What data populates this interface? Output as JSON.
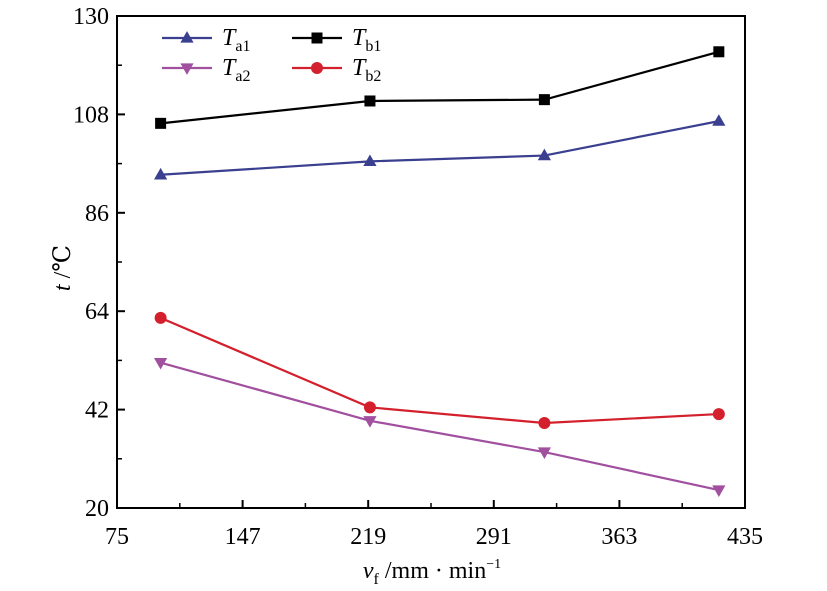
{
  "chart_data": {
    "type": "line",
    "x_axis": {
      "label_main": "v",
      "label_sub": "f",
      "label_rest": " /mm · min",
      "label_sup": "−1",
      "ticks": [
        "75",
        "147",
        "219",
        "291",
        "363",
        "435"
      ],
      "range": [
        75,
        435
      ]
    },
    "y_axis": {
      "label_main": "t",
      "label_rest": " /℃",
      "ticks": [
        "20",
        "42",
        "64",
        "86",
        "108",
        "130"
      ],
      "range": [
        20,
        130
      ]
    },
    "x": [
      100,
      220,
      320,
      420
    ],
    "series": [
      {
        "id": "Ta1",
        "name_main": "T",
        "name_sub": "a1",
        "color": "#3a3f8f",
        "marker": "triangle-up",
        "values": [
          94.5,
          97.5,
          98.8,
          106.5
        ]
      },
      {
        "id": "Tb1",
        "name_main": "T",
        "name_sub": "b1",
        "color": "#000000",
        "marker": "square",
        "values": [
          106,
          111,
          111.3,
          122
        ]
      },
      {
        "id": "Ta2",
        "name_main": "T",
        "name_sub": "a2",
        "color": "#a0509f",
        "marker": "triangle-down",
        "values": [
          52.5,
          39.5,
          32.5,
          24
        ]
      },
      {
        "id": "Tb2",
        "name_main": "T",
        "name_sub": "b2",
        "color": "#d4202c",
        "marker": "circle",
        "values": [
          62.5,
          42.5,
          39,
          41
        ]
      }
    ],
    "grid": false,
    "legend_position": "top-left"
  }
}
